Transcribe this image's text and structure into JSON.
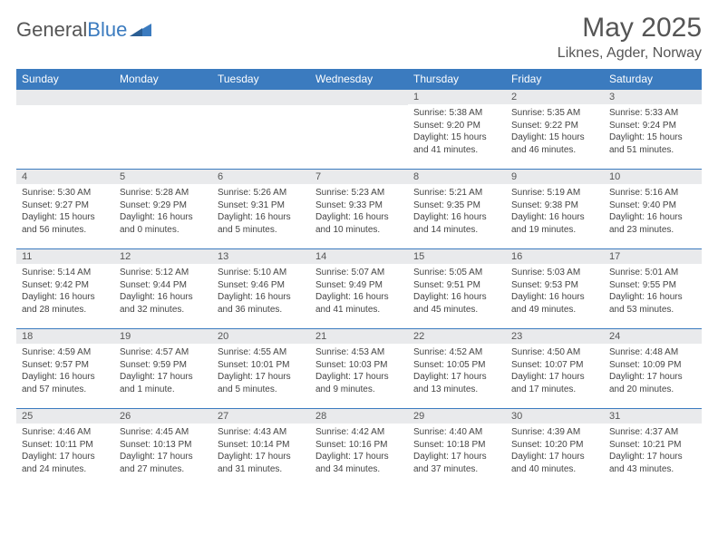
{
  "brand": {
    "part1": "General",
    "part2": "Blue"
  },
  "title": "May 2025",
  "location": "Liknes, Agder, Norway",
  "colors": {
    "header_bg": "#3b7bbf",
    "header_text": "#ffffff",
    "daynum_bg": "#e9eaec",
    "border": "#3b7bbf",
    "text": "#444444",
    "title_text": "#555555"
  },
  "fonts": {
    "title_size": 30,
    "location_size": 16,
    "header_size": 12,
    "cell_size": 10
  },
  "weekdays": [
    "Sunday",
    "Monday",
    "Tuesday",
    "Wednesday",
    "Thursday",
    "Friday",
    "Saturday"
  ],
  "weeks": [
    [
      {
        "day": "",
        "lines": []
      },
      {
        "day": "",
        "lines": []
      },
      {
        "day": "",
        "lines": []
      },
      {
        "day": "",
        "lines": []
      },
      {
        "day": "1",
        "lines": [
          "Sunrise: 5:38 AM",
          "Sunset: 9:20 PM",
          "Daylight: 15 hours and 41 minutes."
        ]
      },
      {
        "day": "2",
        "lines": [
          "Sunrise: 5:35 AM",
          "Sunset: 9:22 PM",
          "Daylight: 15 hours and 46 minutes."
        ]
      },
      {
        "day": "3",
        "lines": [
          "Sunrise: 5:33 AM",
          "Sunset: 9:24 PM",
          "Daylight: 15 hours and 51 minutes."
        ]
      }
    ],
    [
      {
        "day": "4",
        "lines": [
          "Sunrise: 5:30 AM",
          "Sunset: 9:27 PM",
          "Daylight: 15 hours and 56 minutes."
        ]
      },
      {
        "day": "5",
        "lines": [
          "Sunrise: 5:28 AM",
          "Sunset: 9:29 PM",
          "Daylight: 16 hours and 0 minutes."
        ]
      },
      {
        "day": "6",
        "lines": [
          "Sunrise: 5:26 AM",
          "Sunset: 9:31 PM",
          "Daylight: 16 hours and 5 minutes."
        ]
      },
      {
        "day": "7",
        "lines": [
          "Sunrise: 5:23 AM",
          "Sunset: 9:33 PM",
          "Daylight: 16 hours and 10 minutes."
        ]
      },
      {
        "day": "8",
        "lines": [
          "Sunrise: 5:21 AM",
          "Sunset: 9:35 PM",
          "Daylight: 16 hours and 14 minutes."
        ]
      },
      {
        "day": "9",
        "lines": [
          "Sunrise: 5:19 AM",
          "Sunset: 9:38 PM",
          "Daylight: 16 hours and 19 minutes."
        ]
      },
      {
        "day": "10",
        "lines": [
          "Sunrise: 5:16 AM",
          "Sunset: 9:40 PM",
          "Daylight: 16 hours and 23 minutes."
        ]
      }
    ],
    [
      {
        "day": "11",
        "lines": [
          "Sunrise: 5:14 AM",
          "Sunset: 9:42 PM",
          "Daylight: 16 hours and 28 minutes."
        ]
      },
      {
        "day": "12",
        "lines": [
          "Sunrise: 5:12 AM",
          "Sunset: 9:44 PM",
          "Daylight: 16 hours and 32 minutes."
        ]
      },
      {
        "day": "13",
        "lines": [
          "Sunrise: 5:10 AM",
          "Sunset: 9:46 PM",
          "Daylight: 16 hours and 36 minutes."
        ]
      },
      {
        "day": "14",
        "lines": [
          "Sunrise: 5:07 AM",
          "Sunset: 9:49 PM",
          "Daylight: 16 hours and 41 minutes."
        ]
      },
      {
        "day": "15",
        "lines": [
          "Sunrise: 5:05 AM",
          "Sunset: 9:51 PM",
          "Daylight: 16 hours and 45 minutes."
        ]
      },
      {
        "day": "16",
        "lines": [
          "Sunrise: 5:03 AM",
          "Sunset: 9:53 PM",
          "Daylight: 16 hours and 49 minutes."
        ]
      },
      {
        "day": "17",
        "lines": [
          "Sunrise: 5:01 AM",
          "Sunset: 9:55 PM",
          "Daylight: 16 hours and 53 minutes."
        ]
      }
    ],
    [
      {
        "day": "18",
        "lines": [
          "Sunrise: 4:59 AM",
          "Sunset: 9:57 PM",
          "Daylight: 16 hours and 57 minutes."
        ]
      },
      {
        "day": "19",
        "lines": [
          "Sunrise: 4:57 AM",
          "Sunset: 9:59 PM",
          "Daylight: 17 hours and 1 minute."
        ]
      },
      {
        "day": "20",
        "lines": [
          "Sunrise: 4:55 AM",
          "Sunset: 10:01 PM",
          "Daylight: 17 hours and 5 minutes."
        ]
      },
      {
        "day": "21",
        "lines": [
          "Sunrise: 4:53 AM",
          "Sunset: 10:03 PM",
          "Daylight: 17 hours and 9 minutes."
        ]
      },
      {
        "day": "22",
        "lines": [
          "Sunrise: 4:52 AM",
          "Sunset: 10:05 PM",
          "Daylight: 17 hours and 13 minutes."
        ]
      },
      {
        "day": "23",
        "lines": [
          "Sunrise: 4:50 AM",
          "Sunset: 10:07 PM",
          "Daylight: 17 hours and 17 minutes."
        ]
      },
      {
        "day": "24",
        "lines": [
          "Sunrise: 4:48 AM",
          "Sunset: 10:09 PM",
          "Daylight: 17 hours and 20 minutes."
        ]
      }
    ],
    [
      {
        "day": "25",
        "lines": [
          "Sunrise: 4:46 AM",
          "Sunset: 10:11 PM",
          "Daylight: 17 hours and 24 minutes."
        ]
      },
      {
        "day": "26",
        "lines": [
          "Sunrise: 4:45 AM",
          "Sunset: 10:13 PM",
          "Daylight: 17 hours and 27 minutes."
        ]
      },
      {
        "day": "27",
        "lines": [
          "Sunrise: 4:43 AM",
          "Sunset: 10:14 PM",
          "Daylight: 17 hours and 31 minutes."
        ]
      },
      {
        "day": "28",
        "lines": [
          "Sunrise: 4:42 AM",
          "Sunset: 10:16 PM",
          "Daylight: 17 hours and 34 minutes."
        ]
      },
      {
        "day": "29",
        "lines": [
          "Sunrise: 4:40 AM",
          "Sunset: 10:18 PM",
          "Daylight: 17 hours and 37 minutes."
        ]
      },
      {
        "day": "30",
        "lines": [
          "Sunrise: 4:39 AM",
          "Sunset: 10:20 PM",
          "Daylight: 17 hours and 40 minutes."
        ]
      },
      {
        "day": "31",
        "lines": [
          "Sunrise: 4:37 AM",
          "Sunset: 10:21 PM",
          "Daylight: 17 hours and 43 minutes."
        ]
      }
    ]
  ]
}
